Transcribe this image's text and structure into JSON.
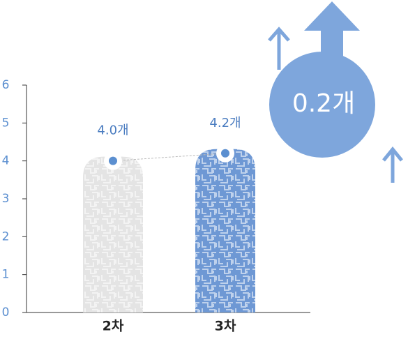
{
  "chart_data": {
    "type": "bar",
    "categories": [
      "2차",
      "3차"
    ],
    "values": [
      4.0,
      4.2
    ],
    "value_labels": [
      "4.0개",
      "4.2개"
    ],
    "colors": [
      "#e4e4e4",
      "#6e98d4"
    ],
    "ylim": [
      0,
      6
    ],
    "yticks": [
      0,
      1,
      2,
      3,
      4,
      5,
      6
    ],
    "annotation": "0.2개"
  }
}
